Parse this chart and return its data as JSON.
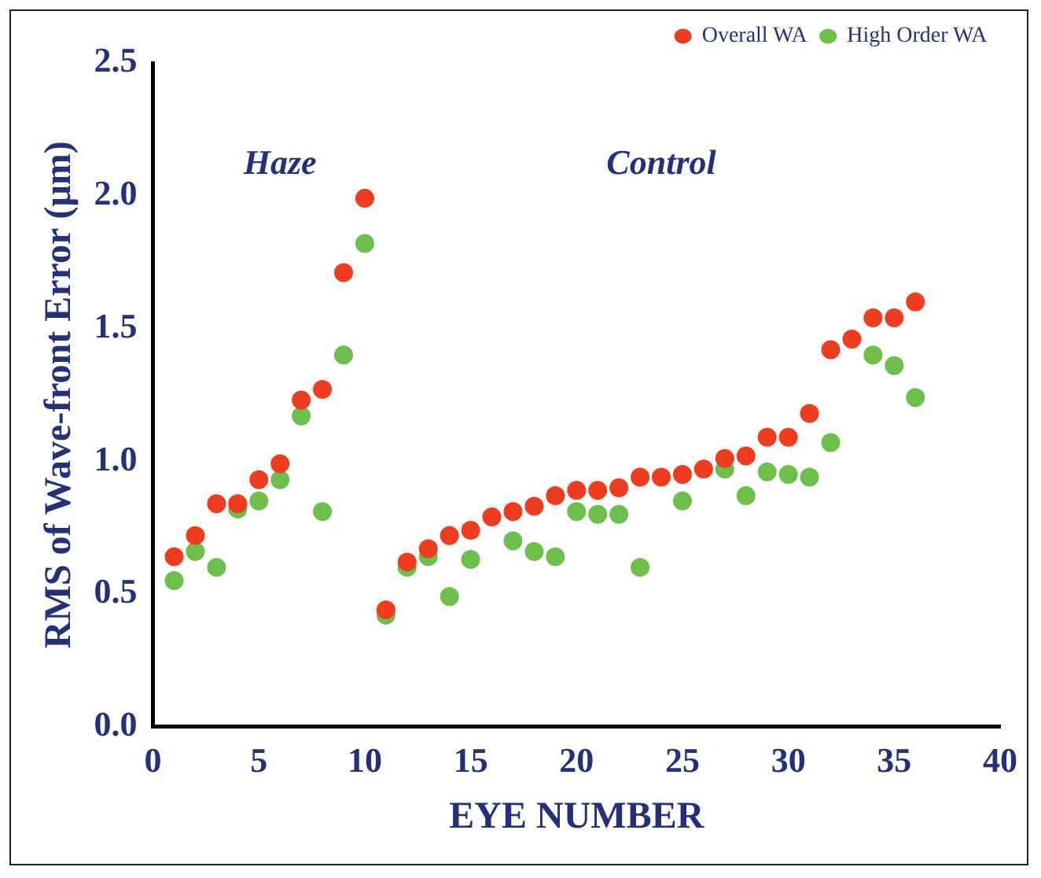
{
  "chart_data": {
    "type": "scatter",
    "xlabel": "EYE NUMBER",
    "ylabel": "RMS of Wave-front Error (μm)",
    "x": [
      1,
      2,
      3,
      4,
      5,
      6,
      7,
      8,
      9,
      10,
      11,
      12,
      13,
      14,
      15,
      16,
      17,
      18,
      19,
      20,
      21,
      22,
      23,
      24,
      25,
      26,
      27,
      28,
      29,
      30,
      31,
      32,
      33,
      34,
      35,
      36
    ],
    "series": [
      {
        "name": "Overall WA",
        "color": "#f03c1e",
        "values": [
          0.64,
          0.72,
          0.84,
          0.84,
          0.93,
          0.99,
          1.23,
          1.27,
          1.71,
          1.99,
          0.44,
          0.62,
          0.67,
          0.72,
          0.74,
          0.79,
          0.81,
          0.83,
          0.87,
          0.89,
          0.89,
          0.9,
          0.94,
          0.94,
          0.95,
          0.97,
          1.01,
          1.02,
          1.09,
          1.09,
          1.18,
          1.42,
          1.46,
          1.54,
          1.54,
          1.6
        ]
      },
      {
        "name": "High Order WA",
        "color": "#6cc04a",
        "values": [
          0.55,
          0.66,
          0.6,
          0.82,
          0.85,
          0.93,
          1.17,
          0.81,
          1.4,
          1.82,
          0.42,
          0.6,
          0.64,
          0.49,
          0.63,
          null,
          0.7,
          0.66,
          0.64,
          0.81,
          0.8,
          0.8,
          0.6,
          null,
          0.85,
          null,
          0.97,
          0.87,
          0.96,
          0.95,
          0.94,
          1.07,
          null,
          1.4,
          1.36,
          1.24
        ]
      }
    ],
    "xlim": [
      0,
      40
    ],
    "xticks": [
      0,
      5,
      10,
      15,
      20,
      25,
      30,
      35,
      40
    ],
    "ylim": [
      0,
      2.5
    ],
    "yticks": [
      {
        "value": 0,
        "label": "0.0"
      },
      {
        "value": 0.5,
        "label": "0.5"
      },
      {
        "value": 1,
        "label": "1.0"
      },
      {
        "value": 1.5,
        "label": "1.5"
      },
      {
        "value": 2,
        "label": "2.0"
      },
      {
        "value": 2.5,
        "label": "2.5"
      }
    ],
    "annotations": [
      "Haze",
      "Control"
    ],
    "legend": "top right",
    "marker": "circle",
    "grid": false
  }
}
